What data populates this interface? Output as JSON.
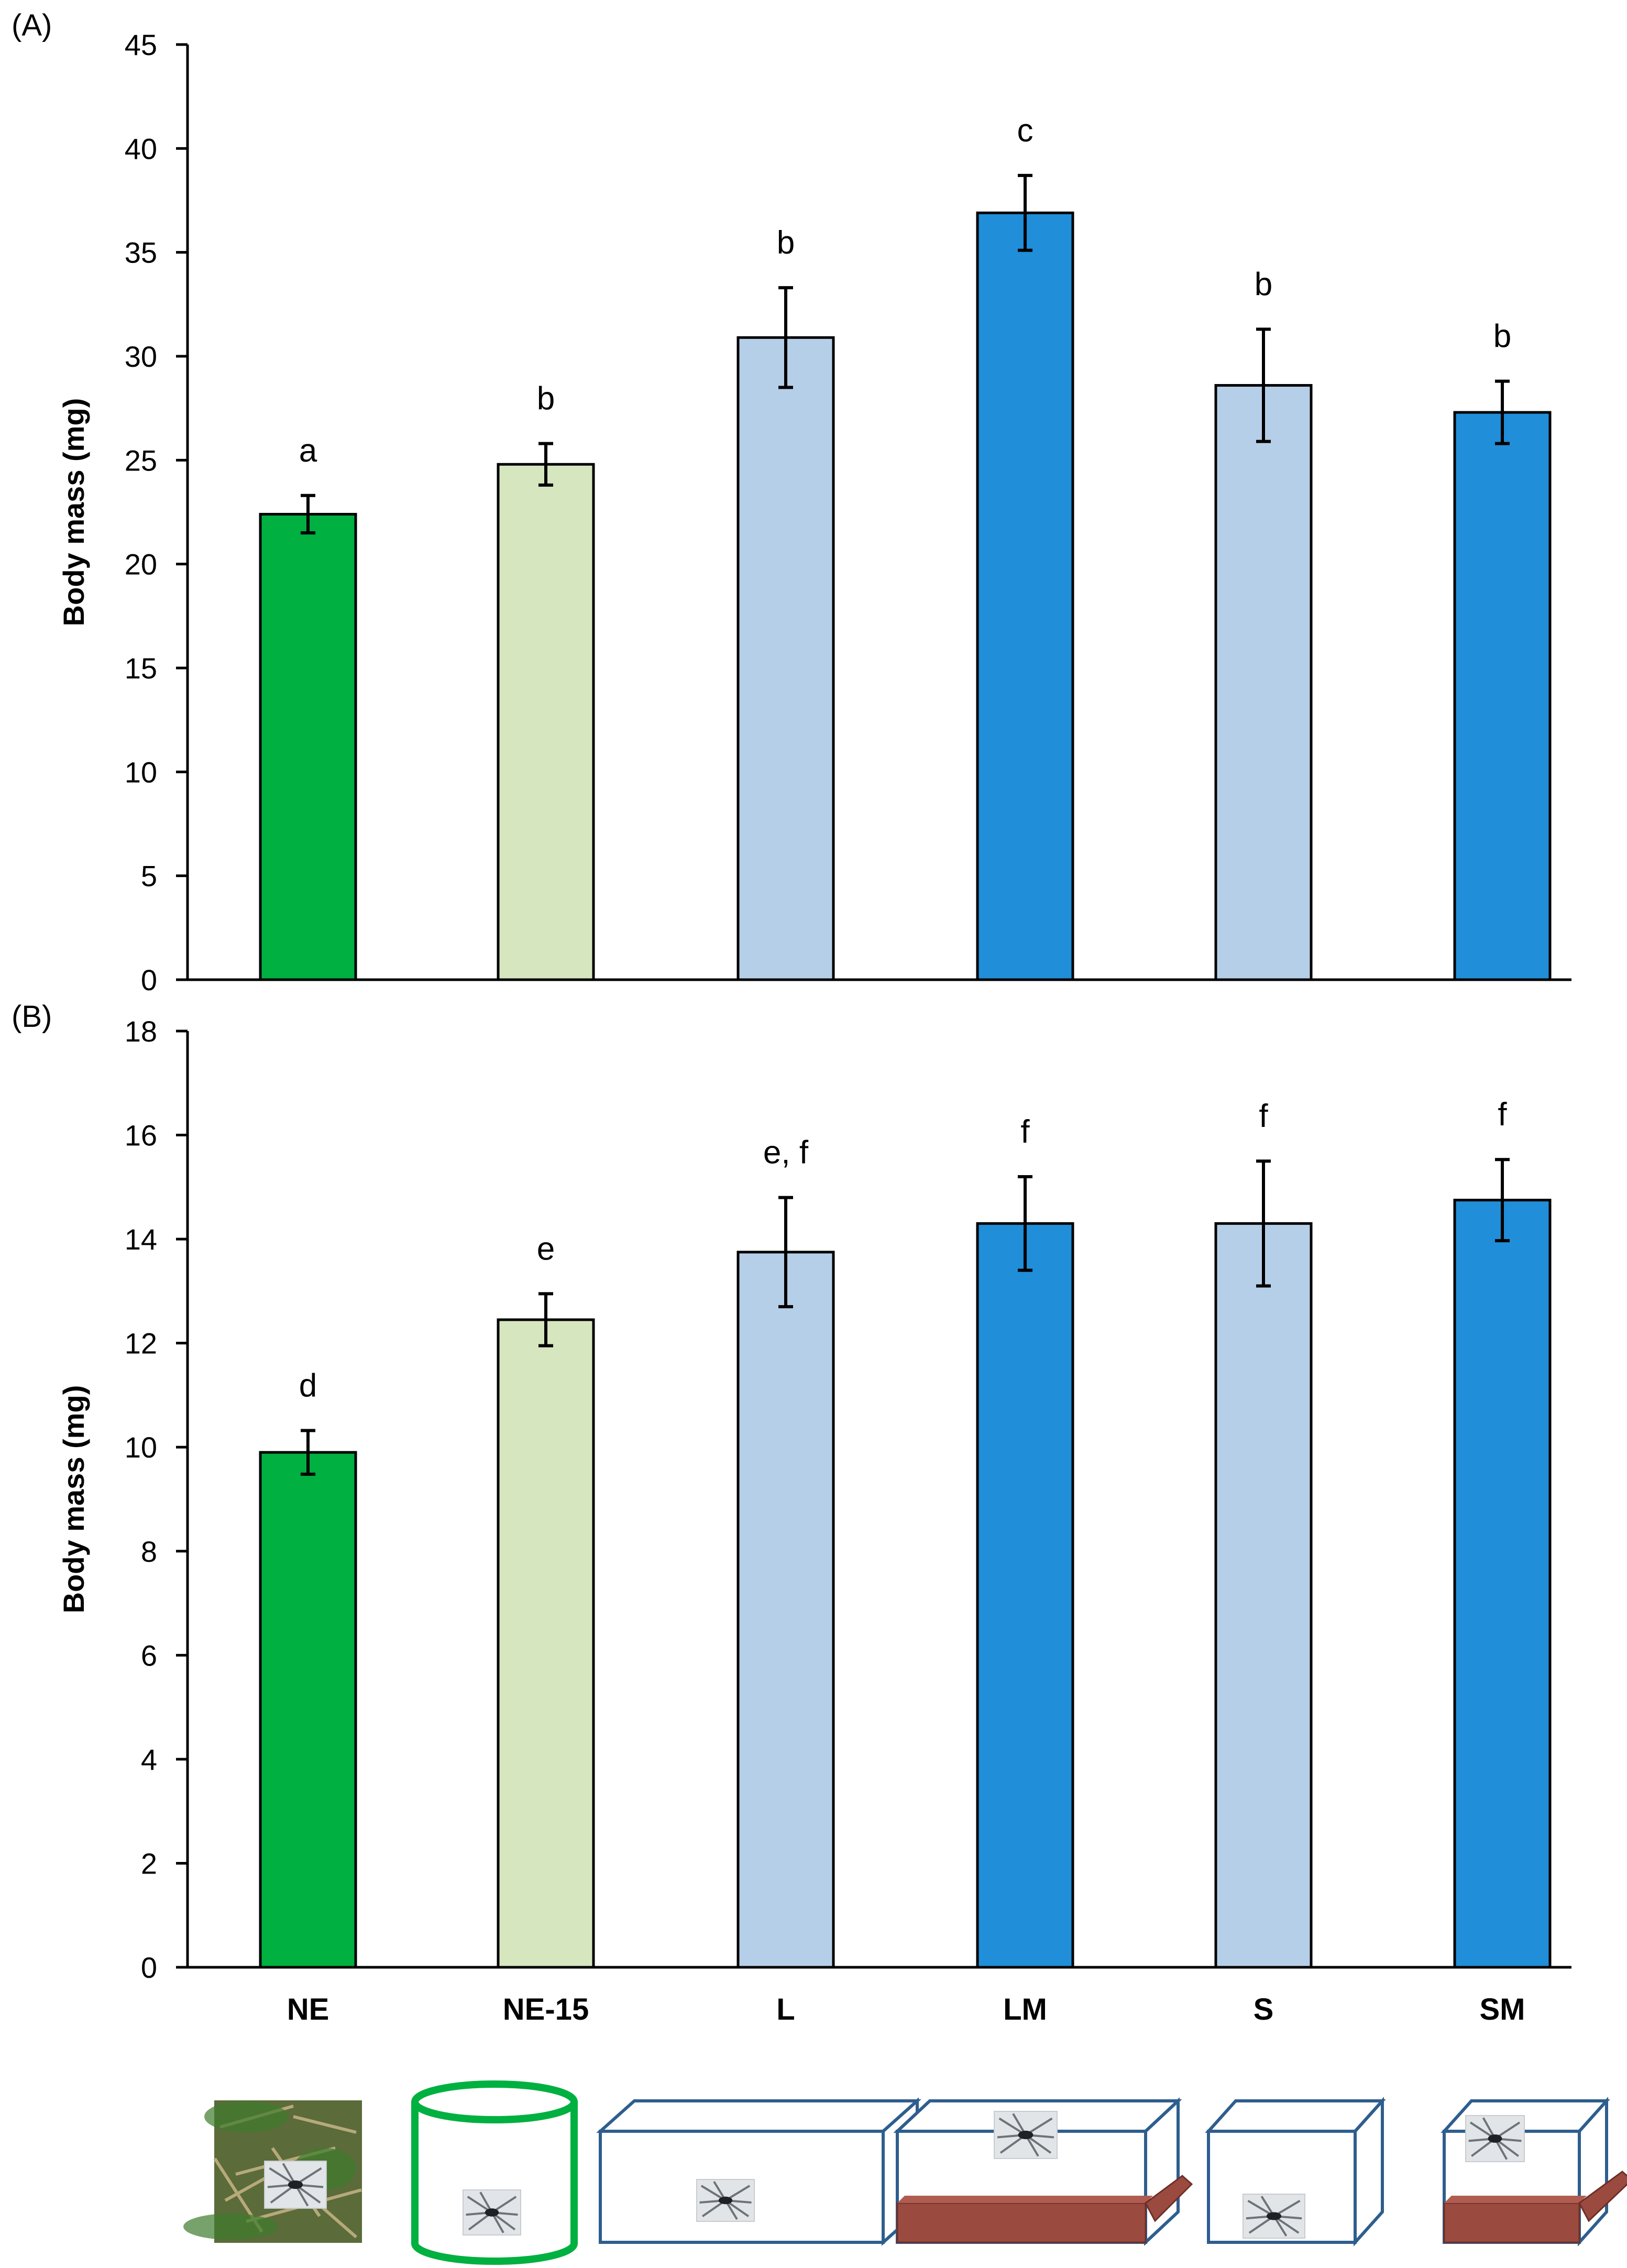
{
  "colors": {
    "NE": "#00b040",
    "NE-15": "#d6e6bf",
    "L": "#b6cfe8",
    "LM": "#208ed8",
    "S": "#b6cfe8",
    "SM": "#208ed8",
    "axis": "#000000",
    "bar_stroke": "#000000",
    "box_stroke": "#2e5e8e",
    "cylinder_stroke": "#00b040",
    "branch": "#9b4a3f",
    "grass": "#5b6b3a"
  },
  "chart_data": [
    {
      "type": "bar",
      "panel_label": "(A)",
      "title": "",
      "xlabel": "",
      "ylabel": "Body mass (mg)",
      "ylim": [
        0,
        45
      ],
      "yticks": [
        0,
        5,
        10,
        15,
        20,
        25,
        30,
        35,
        40,
        45
      ],
      "categories": [
        "NE",
        "NE-15",
        "L",
        "LM",
        "S",
        "SM"
      ],
      "values": [
        22.4,
        24.8,
        30.9,
        36.9,
        28.6,
        27.3
      ],
      "errors": [
        0.9,
        1.0,
        2.4,
        1.8,
        2.7,
        1.5
      ],
      "letters": [
        "a",
        "b",
        "b",
        "c",
        "b",
        "b"
      ],
      "show_category_labels": false
    },
    {
      "type": "bar",
      "panel_label": "(B)",
      "title": "",
      "xlabel": "",
      "ylabel": "Body mass (mg)",
      "ylim": [
        0,
        18
      ],
      "yticks": [
        0,
        2,
        4,
        6,
        8,
        10,
        12,
        14,
        16,
        18
      ],
      "categories": [
        "NE",
        "NE-15",
        "L",
        "LM",
        "S",
        "SM"
      ],
      "values": [
        9.9,
        12.45,
        13.75,
        14.3,
        14.3,
        14.75
      ],
      "errors": [
        0.42,
        0.5,
        1.05,
        0.9,
        1.2,
        0.78
      ],
      "letters": [
        "d",
        "e",
        "e, f",
        "f",
        "f",
        "f"
      ],
      "show_category_labels": true
    }
  ],
  "icons": [
    {
      "category": "NE",
      "name": "field-photo-icon"
    },
    {
      "category": "NE-15",
      "name": "cylinder-enclosure-icon"
    },
    {
      "category": "L",
      "name": "large-box-icon"
    },
    {
      "category": "LM",
      "name": "large-box-with-branch-icon"
    },
    {
      "category": "S",
      "name": "small-box-icon"
    },
    {
      "category": "SM",
      "name": "small-box-with-branch-icon"
    }
  ]
}
